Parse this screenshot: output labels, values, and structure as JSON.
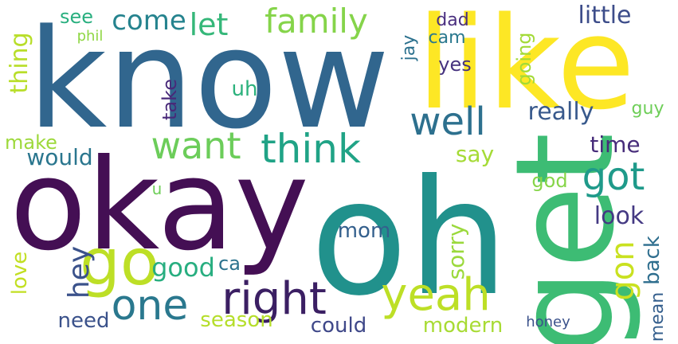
{
  "words": [
    {
      "text": "know",
      "color": "#31668e"
    },
    {
      "text": "like",
      "color": "#fde725"
    },
    {
      "text": "okay",
      "color": "#440f54"
    },
    {
      "text": "oh",
      "color": "#21918c"
    },
    {
      "text": "get",
      "color": "#3dbc74"
    },
    {
      "text": "go",
      "color": "#bddf26"
    },
    {
      "text": "right",
      "color": "#3b1f63"
    },
    {
      "text": "yeah",
      "color": "#bddf26"
    },
    {
      "text": "one",
      "color": "#2a788e"
    },
    {
      "text": "think",
      "color": "#20a386"
    },
    {
      "text": "want",
      "color": "#6ccd5a"
    },
    {
      "text": "well",
      "color": "#2d708e"
    },
    {
      "text": "got",
      "color": "#1f9a8a"
    },
    {
      "text": "gon",
      "color": "#c9e120"
    },
    {
      "text": "family",
      "color": "#85d44a"
    },
    {
      "text": "come",
      "color": "#25838e"
    },
    {
      "text": "let",
      "color": "#35b779"
    },
    {
      "text": "hey",
      "color": "#3b528b"
    },
    {
      "text": "little",
      "color": "#3d4d8a"
    },
    {
      "text": "see",
      "color": "#29af7f"
    },
    {
      "text": "dad",
      "color": "#4a2f7f"
    },
    {
      "text": "cam",
      "color": "#2a788e"
    },
    {
      "text": "yes",
      "color": "#46337f"
    },
    {
      "text": "going",
      "color": "#a2da37"
    },
    {
      "text": "jay",
      "color": "#2c718e"
    },
    {
      "text": "thing",
      "color": "#b8de29"
    },
    {
      "text": "phil",
      "color": "#8fd744"
    },
    {
      "text": "uh",
      "color": "#2db27d"
    },
    {
      "text": "take",
      "color": "#482979"
    },
    {
      "text": "really",
      "color": "#38598c"
    },
    {
      "text": "guy",
      "color": "#6ece58"
    },
    {
      "text": "time",
      "color": "#472c7a"
    },
    {
      "text": "make",
      "color": "#9dd93b"
    },
    {
      "text": "would",
      "color": "#2a768e"
    },
    {
      "text": "say",
      "color": "#a5db36"
    },
    {
      "text": "god",
      "color": "#86d549"
    },
    {
      "text": "u",
      "color": "#6ece58"
    },
    {
      "text": "look",
      "color": "#443983"
    },
    {
      "text": "mom",
      "color": "#34608d"
    },
    {
      "text": "sorry",
      "color": "#9bd93c"
    },
    {
      "text": "back",
      "color": "#2e6e8e"
    },
    {
      "text": "love",
      "color": "#c2df23"
    },
    {
      "text": "good",
      "color": "#28ae80"
    },
    {
      "text": "ca",
      "color": "#2c738e"
    },
    {
      "text": "mean",
      "color": "#355f8d"
    },
    {
      "text": "need",
      "color": "#3b528b"
    },
    {
      "text": "season",
      "color": "#b5de2b"
    },
    {
      "text": "could",
      "color": "#3f4889"
    },
    {
      "text": "modern",
      "color": "#a8db34"
    },
    {
      "text": "honey",
      "color": "#3b528b"
    }
  ]
}
